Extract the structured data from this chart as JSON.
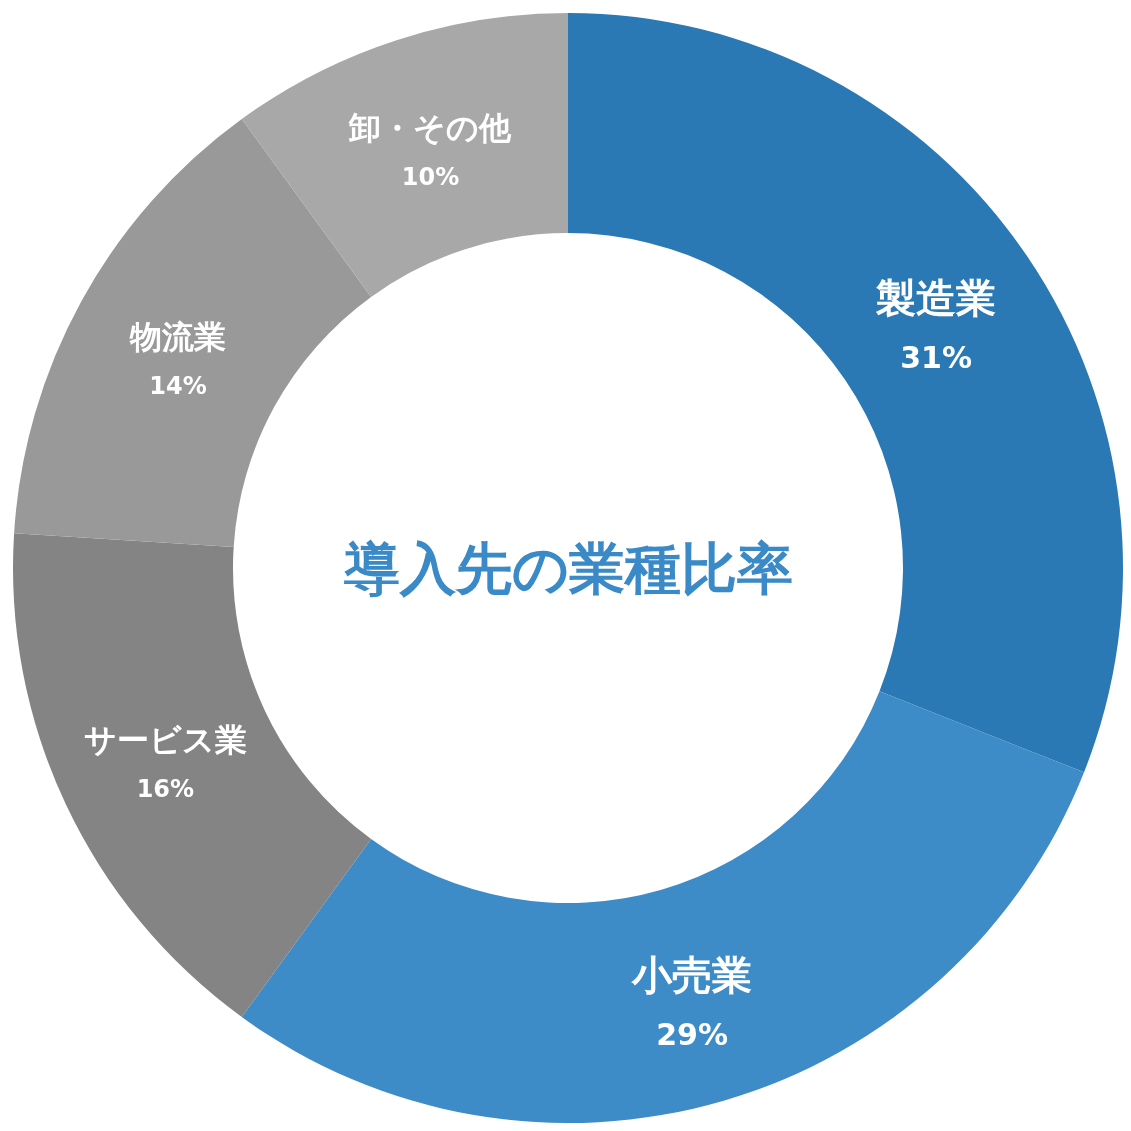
{
  "chart_data": {
    "type": "donut",
    "title": "導入先の業種比率",
    "categories": [
      "製造業",
      "小売業",
      "サービス業",
      "物流業",
      "卸・その他"
    ],
    "values": [
      31,
      29,
      16,
      14,
      10
    ],
    "colors": [
      "#2a79b4",
      "#3d8bc7",
      "#848484",
      "#999999",
      "#a8a8a8"
    ],
    "value_labels": [
      "31%",
      "29%",
      "16%",
      "14%",
      "10%"
    ]
  }
}
